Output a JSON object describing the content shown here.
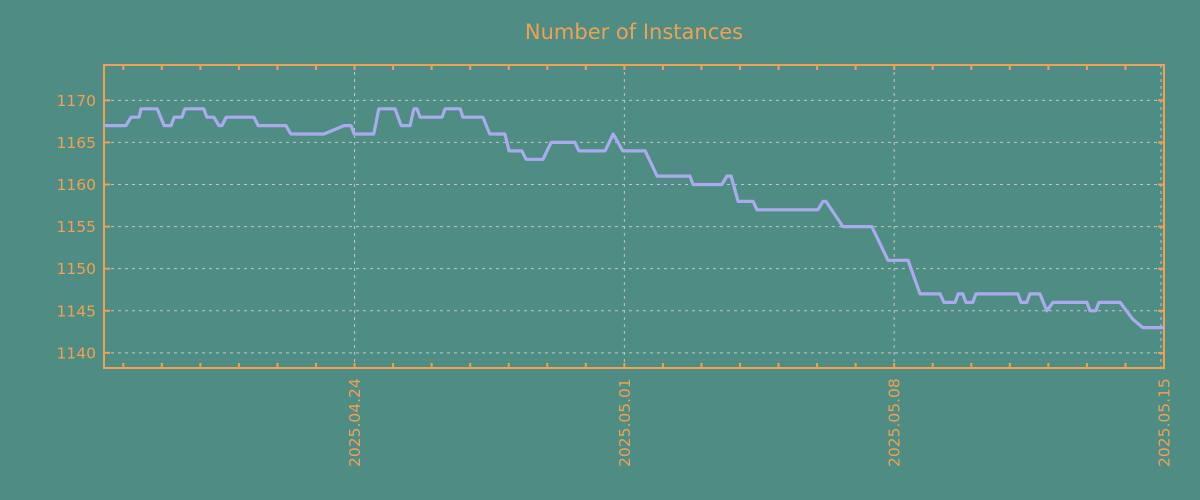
{
  "figure": {
    "background_color": "#4e8c84",
    "accent_color": "#f0a155"
  },
  "chart_data": {
    "type": "line",
    "title": "Number of Instances",
    "legend": "none",
    "grid": {
      "show": true,
      "color": "#c3cac8",
      "style": "dashed"
    },
    "x_axis": {
      "tick_labels": [
        "2025.04.24",
        "2025.05.01",
        "2025.05.08",
        "2025.05.15"
      ],
      "tick_positions_days": [
        6.5,
        13.5,
        20.5,
        27.5
      ],
      "minor_tick_start_day": 0.5,
      "minor_tick_step_days": 1,
      "range_days": [
        0,
        27.5
      ],
      "label_rotation_deg": 90
    },
    "y_axis": {
      "tick_labels": [
        "1140",
        "1145",
        "1150",
        "1155",
        "1160",
        "1165",
        "1170"
      ],
      "tick_values": [
        1140,
        1145,
        1150,
        1155,
        1160,
        1165,
        1170
      ],
      "range": [
        1138.2,
        1174.2
      ]
    },
    "series": [
      {
        "name": "Number of Instances",
        "color": "#aaabec",
        "points": [
          [
            0.0,
            1167
          ],
          [
            0.57,
            1167
          ],
          [
            0.7,
            1168
          ],
          [
            0.91,
            1168
          ],
          [
            0.96,
            1169
          ],
          [
            1.38,
            1169
          ],
          [
            1.56,
            1167
          ],
          [
            1.74,
            1167
          ],
          [
            1.82,
            1168
          ],
          [
            2.02,
            1168
          ],
          [
            2.1,
            1169
          ],
          [
            2.59,
            1169
          ],
          [
            2.67,
            1168
          ],
          [
            2.85,
            1168
          ],
          [
            2.98,
            1167
          ],
          [
            3.06,
            1167
          ],
          [
            3.17,
            1168
          ],
          [
            3.89,
            1168
          ],
          [
            4.0,
            1167
          ],
          [
            4.72,
            1167
          ],
          [
            4.85,
            1166
          ],
          [
            5.71,
            1166
          ],
          [
            6.23,
            1167
          ],
          [
            6.41,
            1167
          ],
          [
            6.49,
            1166
          ],
          [
            7.0,
            1166
          ],
          [
            7.13,
            1169
          ],
          [
            7.55,
            1169
          ],
          [
            7.71,
            1167
          ],
          [
            7.94,
            1167
          ],
          [
            8.04,
            1169
          ],
          [
            8.12,
            1169
          ],
          [
            8.2,
            1168
          ],
          [
            8.77,
            1168
          ],
          [
            8.85,
            1169
          ],
          [
            9.24,
            1169
          ],
          [
            9.31,
            1168
          ],
          [
            9.83,
            1168
          ],
          [
            10.01,
            1166
          ],
          [
            10.4,
            1166
          ],
          [
            10.51,
            1164
          ],
          [
            10.84,
            1164
          ],
          [
            10.95,
            1163
          ],
          [
            11.39,
            1163
          ],
          [
            11.6,
            1165
          ],
          [
            12.22,
            1165
          ],
          [
            12.32,
            1164
          ],
          [
            13.0,
            1164
          ],
          [
            13.21,
            1166
          ],
          [
            13.46,
            1164
          ],
          [
            14.04,
            1164
          ],
          [
            14.35,
            1161
          ],
          [
            15.2,
            1161
          ],
          [
            15.28,
            1160
          ],
          [
            16.03,
            1160
          ],
          [
            16.16,
            1161
          ],
          [
            16.27,
            1161
          ],
          [
            16.45,
            1158
          ],
          [
            16.84,
            1158
          ],
          [
            16.94,
            1157
          ],
          [
            18.52,
            1157
          ],
          [
            18.65,
            1158
          ],
          [
            18.73,
            1158
          ],
          [
            19.17,
            1155
          ],
          [
            19.92,
            1155
          ],
          [
            20.34,
            1151
          ],
          [
            20.86,
            1151
          ],
          [
            21.17,
            1147
          ],
          [
            21.69,
            1147
          ],
          [
            21.79,
            1146
          ],
          [
            22.08,
            1146
          ],
          [
            22.16,
            1147
          ],
          [
            22.28,
            1147
          ],
          [
            22.36,
            1146
          ],
          [
            22.54,
            1146
          ],
          [
            22.62,
            1147
          ],
          [
            23.71,
            1147
          ],
          [
            23.79,
            1146
          ],
          [
            23.94,
            1146
          ],
          [
            24.02,
            1147
          ],
          [
            24.28,
            1147
          ],
          [
            24.46,
            1145
          ],
          [
            24.62,
            1146
          ],
          [
            25.5,
            1146
          ],
          [
            25.58,
            1145
          ],
          [
            25.73,
            1145
          ],
          [
            25.81,
            1146
          ],
          [
            26.36,
            1146
          ],
          [
            26.69,
            1144
          ],
          [
            26.95,
            1143
          ],
          [
            27.5,
            1143
          ]
        ]
      }
    ]
  }
}
